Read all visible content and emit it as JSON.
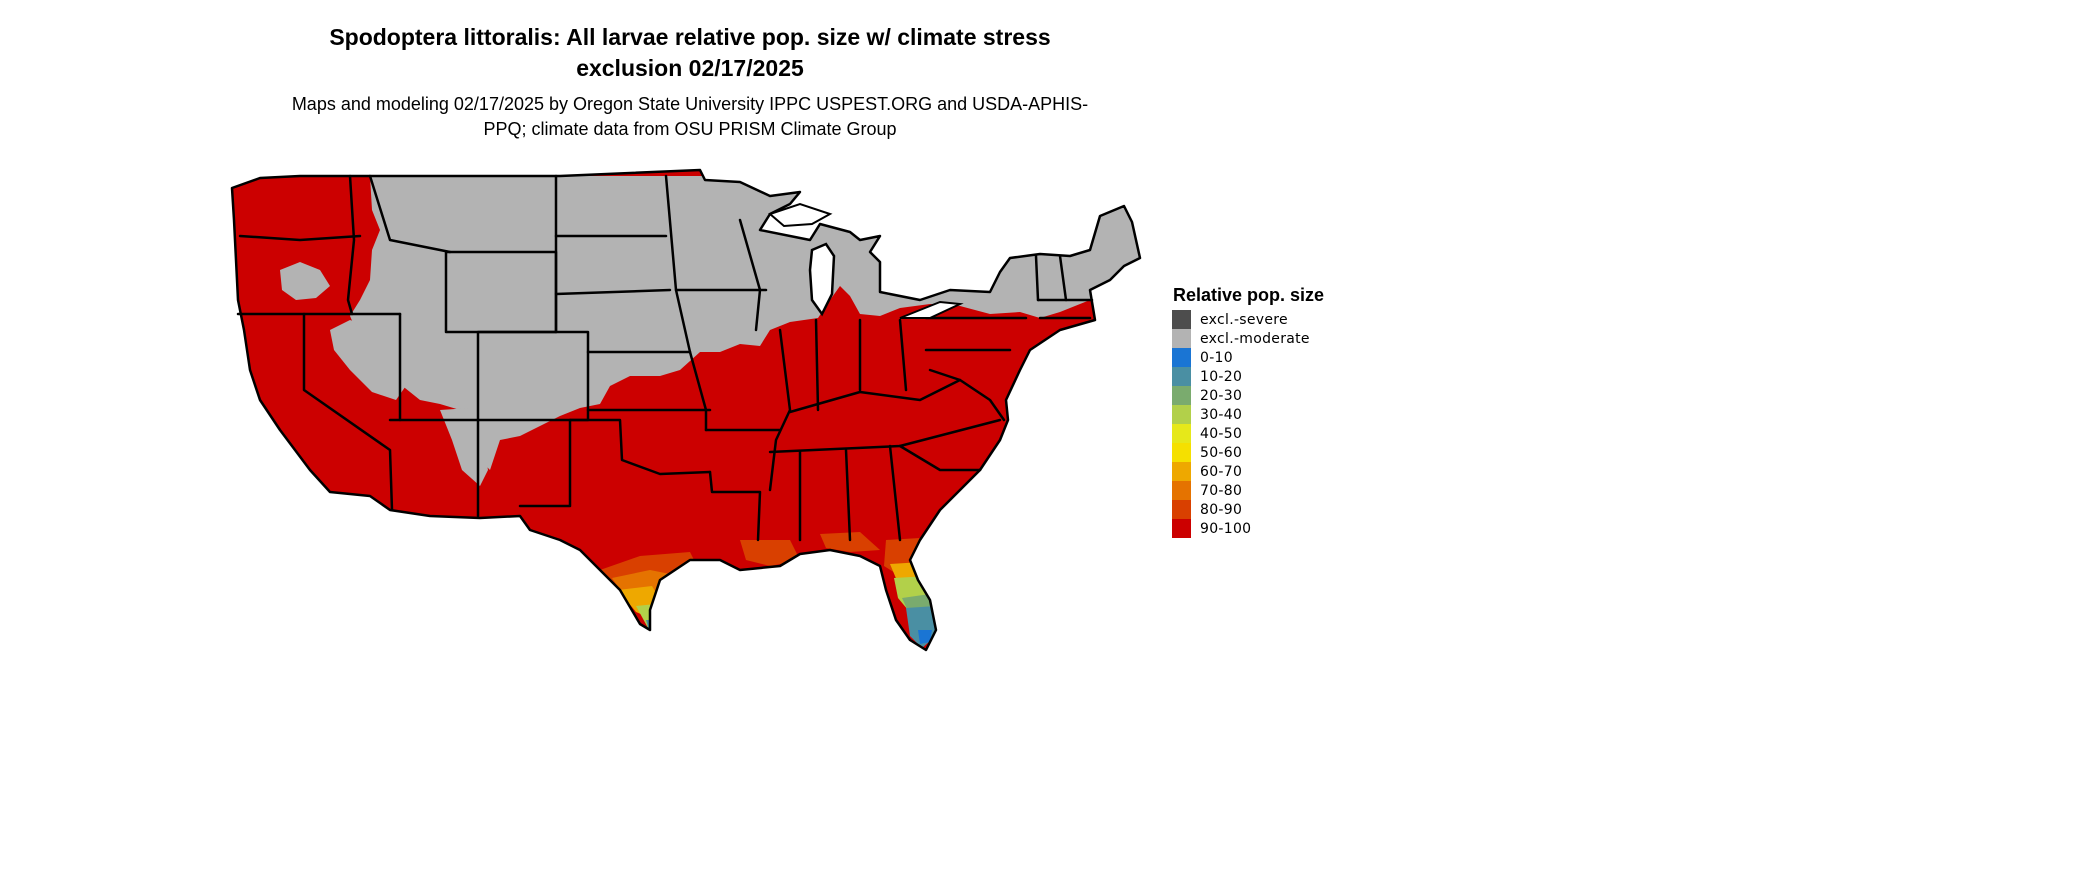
{
  "title": "Spodoptera littoralis: All larvae relative pop. size w/ climate stress exclusion 02/17/2025",
  "subtitle": "Maps and modeling 02/17/2025 by Oregon State University IPPC USPEST.ORG and USDA-APHIS-PPQ; climate data from OSU PRISM Climate Group",
  "legend": {
    "title": "Relative pop. size",
    "items": [
      {
        "label": "excl.-severe",
        "color": "#4d4d4d"
      },
      {
        "label": "excl.-moderate",
        "color": "#b3b3b3"
      },
      {
        "label": "0-10",
        "color": "#1a75d4"
      },
      {
        "label": "10-20",
        "color": "#4a8fa3"
      },
      {
        "label": "20-30",
        "color": "#7aab6e"
      },
      {
        "label": "30-40",
        "color": "#b2d04a"
      },
      {
        "label": "40-50",
        "color": "#e6e81a"
      },
      {
        "label": "50-60",
        "color": "#f5e000"
      },
      {
        "label": "60-70",
        "color": "#eea800"
      },
      {
        "label": "70-80",
        "color": "#e57300"
      },
      {
        "label": "80-90",
        "color": "#d94000"
      },
      {
        "label": "90-100",
        "color": "#cc0000"
      }
    ]
  },
  "map": {
    "region": "Contiguous United States",
    "excluded_region_color": "#b3b3b3",
    "suitable_region_color": "#cc0000",
    "border_color": "#000000"
  }
}
